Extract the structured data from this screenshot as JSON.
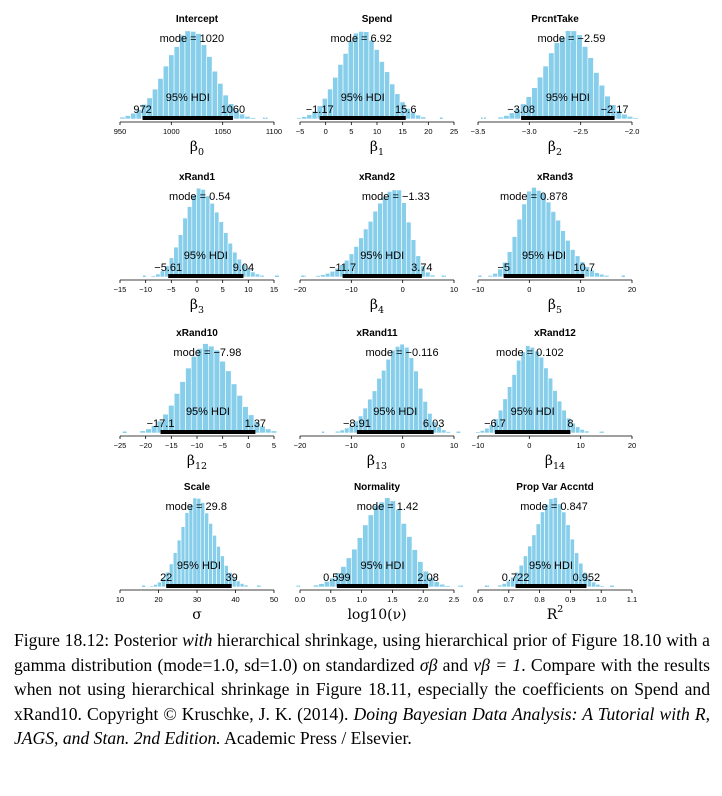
{
  "chart_data": {
    "type": "histogram-grid",
    "hdi_label": "95% HDI",
    "colors": {
      "bar_fill": "#87ceeb",
      "bar_stroke": "#ffffff",
      "hdi_bar": "#000000",
      "tail_points": "#87ceeb"
    },
    "panels": [
      {
        "title": "Intercept",
        "mode_label": "mode = 1020",
        "hdi_low": "972",
        "hdi_high": "1060",
        "ticks": [
          "950",
          "1000",
          "1050",
          "1100"
        ],
        "xlim": [
          950,
          1100
        ],
        "mode": 1020,
        "hdi": [
          972,
          1060
        ],
        "xlabel_base": "β",
        "xlabel_sub": "0",
        "xlabel_sup": ""
      },
      {
        "title": "Spend",
        "mode_label": "mode = 6.92",
        "hdi_low": "−1.17",
        "hdi_high": "15.6",
        "ticks": [
          "−5",
          "0",
          "5",
          "10",
          "15",
          "20",
          "25"
        ],
        "xlim": [
          -5,
          25
        ],
        "mode": 6.92,
        "hdi": [
          -1.17,
          15.6
        ],
        "xlabel_base": "β",
        "xlabel_sub": "1",
        "xlabel_sup": ""
      },
      {
        "title": "PrcntTake",
        "mode_label": "mode = −2.59",
        "hdi_low": "−3.08",
        "hdi_high": "−2.17",
        "ticks": [
          "−3.5",
          "−3.0",
          "−2.5",
          "−2.0"
        ],
        "xlim": [
          -3.5,
          -2.0
        ],
        "mode": -2.59,
        "hdi": [
          -3.08,
          -2.17
        ],
        "xlabel_base": "β",
        "xlabel_sub": "2",
        "xlabel_sup": ""
      },
      {
        "title": "xRand1",
        "mode_label": "mode = 0.54",
        "hdi_low": "−5.61",
        "hdi_high": "9.04",
        "ticks": [
          "−15",
          "−10",
          "−5",
          "0",
          "5",
          "10",
          "15"
        ],
        "xlim": [
          -15,
          15
        ],
        "mode": 0.54,
        "hdi": [
          -5.61,
          9.04
        ],
        "xlabel_base": "β",
        "xlabel_sub": "3",
        "xlabel_sup": ""
      },
      {
        "title": "xRand2",
        "mode_label": "mode = −1.33",
        "hdi_low": "−11.7",
        "hdi_high": "3.74",
        "ticks": [
          "−20",
          "−10",
          "0",
          "10"
        ],
        "xlim": [
          -20,
          10
        ],
        "mode": -1.33,
        "hdi": [
          -11.7,
          3.74
        ],
        "xlabel_base": "β",
        "xlabel_sub": "4",
        "xlabel_sup": ""
      },
      {
        "title": "xRand3",
        "mode_label": "mode = 0.878",
        "hdi_low": "−5",
        "hdi_high": "10.7",
        "ticks": [
          "−10",
          "0",
          "10",
          "20"
        ],
        "xlim": [
          -10,
          20
        ],
        "mode": 0.878,
        "hdi": [
          -5,
          10.7
        ],
        "xlabel_base": "β",
        "xlabel_sub": "5",
        "xlabel_sup": ""
      },
      {
        "title": "xRand10",
        "mode_label": "mode = −7.98",
        "hdi_low": "−17.1",
        "hdi_high": "1.37",
        "ticks": [
          "−25",
          "−20",
          "−15",
          "−10",
          "−5",
          "0",
          "5"
        ],
        "xlim": [
          -25,
          5
        ],
        "mode": -7.98,
        "hdi": [
          -17.1,
          1.37
        ],
        "xlabel_base": "β",
        "xlabel_sub": "12",
        "xlabel_sup": ""
      },
      {
        "title": "xRand11",
        "mode_label": "mode = −0.116",
        "hdi_low": "−8.91",
        "hdi_high": "6.03",
        "ticks": [
          "−20",
          "−10",
          "0",
          "10"
        ],
        "xlim": [
          -20,
          10
        ],
        "mode": -0.116,
        "hdi": [
          -8.91,
          6.03
        ],
        "xlabel_base": "β",
        "xlabel_sub": "13",
        "xlabel_sup": ""
      },
      {
        "title": "xRand12",
        "mode_label": "mode = 0.102",
        "hdi_low": "−6.7",
        "hdi_high": "8",
        "ticks": [
          "−10",
          "0",
          "10",
          "20"
        ],
        "xlim": [
          -10,
          20
        ],
        "mode": 0.102,
        "hdi": [
          -6.7,
          8
        ],
        "xlabel_base": "β",
        "xlabel_sub": "14",
        "xlabel_sup": ""
      },
      {
        "title": "Scale",
        "mode_label": "mode = 29.8",
        "hdi_low": "22",
        "hdi_high": "39",
        "ticks": [
          "10",
          "20",
          "30",
          "40",
          "50"
        ],
        "xlim": [
          10,
          50
        ],
        "mode": 29.8,
        "hdi": [
          22,
          39
        ],
        "xlabel_base": "σ",
        "xlabel_sub": "",
        "xlabel_sup": ""
      },
      {
        "title": "Normality",
        "mode_label": "mode = 1.42",
        "hdi_low": "0.599",
        "hdi_high": "2.08",
        "ticks": [
          "0.0",
          "0.5",
          "1.0",
          "1.5",
          "2.0",
          "2.5"
        ],
        "xlim": [
          0,
          2.5
        ],
        "mode": 1.42,
        "hdi": [
          0.599,
          2.08
        ],
        "xlabel_base": "log10(ν)",
        "xlabel_sub": "",
        "xlabel_sup": ""
      },
      {
        "title": "Prop Var Accntd",
        "mode_label": "mode = 0.847",
        "hdi_low": "0.722",
        "hdi_high": "0.952",
        "ticks": [
          "0.6",
          "0.7",
          "0.8",
          "0.9",
          "1.0",
          "1.1"
        ],
        "xlim": [
          0.6,
          1.1
        ],
        "mode": 0.847,
        "hdi": [
          0.722,
          0.952
        ],
        "xlabel_base": "R",
        "xlabel_sub": "",
        "xlabel_sup": "2"
      }
    ]
  },
  "caption": {
    "p1": "Figure 18.12: Posterior ",
    "p1_italic": "with",
    "p2": " hierarchical shrinkage, using hierarchical prior of Figure 18.10 with a gamma distribution (mode=1.0, sd=1.0) on standardized ",
    "sigma_beta": "σβ",
    "p3": " and ",
    "nu_beta": "νβ = 1",
    "p4": ". Compare with the results when not using hierarchical shrinkage in Figure 18.11, especially the coefficients on Spend and xRand10. Copyright © Kruschke, J. K. (2014). ",
    "book_italic": "Doing Bayesian Data Analysis: A Tutorial with R, JAGS, and Stan. 2nd Edition.",
    "p5": " Academic Press / Elsevier."
  }
}
